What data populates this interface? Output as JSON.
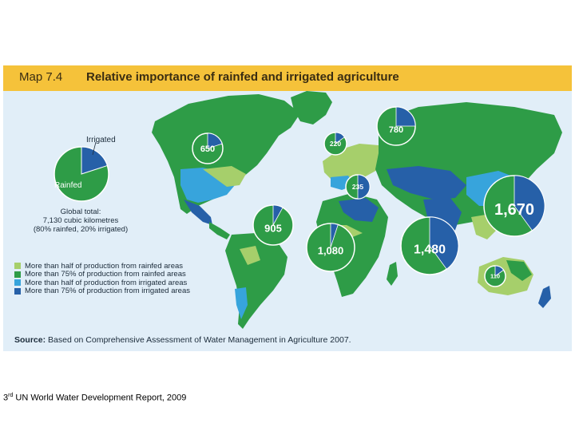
{
  "header": {
    "map_number": "Map 7.4",
    "title": "Relative importance of rainfed and irrigated agriculture"
  },
  "key_pie": {
    "irrigated_label": "Irrigated",
    "rainfed_label": "Rainfed",
    "rainfed_fraction": 0.8,
    "irrigated_fraction": 0.2
  },
  "global_total": {
    "line1": "Global total:",
    "line2": "7,130 cubic kilometres",
    "line3": "(80% rainfed, 20% irrigated)"
  },
  "regions": [
    {
      "label": "650",
      "irrigated_fraction": 0.2
    },
    {
      "label": "220",
      "irrigated_fraction": 0.15
    },
    {
      "label": "780",
      "irrigated_fraction": 0.25
    },
    {
      "label": "235",
      "irrigated_fraction": 0.5
    },
    {
      "label": "905",
      "irrigated_fraction": 0.08
    },
    {
      "label": "1,080",
      "irrigated_fraction": 0.05
    },
    {
      "label": "1,480",
      "irrigated_fraction": 0.4
    },
    {
      "label": "1,670",
      "irrigated_fraction": 0.4
    },
    {
      "label": "110",
      "irrigated_fraction": 0.15
    }
  ],
  "legend": [
    {
      "label": "More than half of production from rainfed areas",
      "color": "#a6cf6b"
    },
    {
      "label": "More than 75% of production from rainfed areas",
      "color": "#2e9c47"
    },
    {
      "label": "More than half of production from irrigated areas",
      "color": "#37a4dc"
    },
    {
      "label": "More than 75% of production from irrigated areas",
      "color": "#2660a8"
    }
  ],
  "colors": {
    "rainfed": "#2e9c47",
    "irrigated": "#2660a8",
    "ocean": "#e1eef8",
    "header": "#f5c23a"
  },
  "source": {
    "prefix": "Source:",
    "text": " Based on Comprehensive Assessment of Water Management in Agriculture 2007."
  },
  "caption": {
    "ordinal": "3",
    "suffix": "rd",
    "text": " UN World Water Development Report, 2009"
  }
}
